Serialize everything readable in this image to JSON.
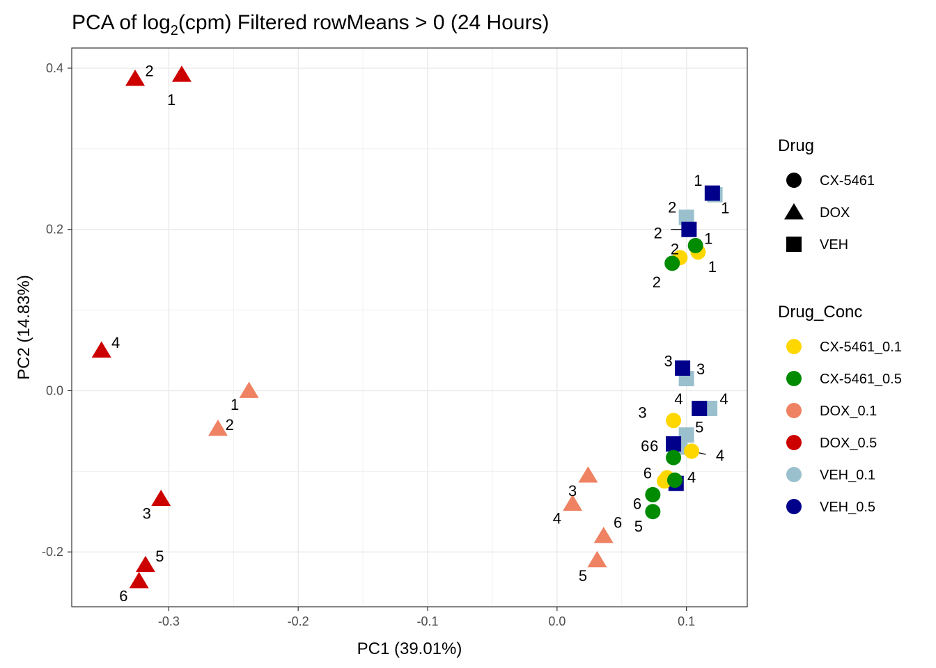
{
  "chart_data": {
    "type": "scatter",
    "title": {
      "main": "PCA of log",
      "sub": "2",
      "rest": "(cpm) Filtered rowMeans > 0 (24 Hours)"
    },
    "xlabel": "PC1 (39.01%)",
    "ylabel": "PC2 (14.83%)",
    "xlim": [
      -0.375,
      0.147
    ],
    "ylim": [
      -0.268,
      0.425
    ],
    "x_ticks": [
      -0.3,
      -0.2,
      -0.1,
      0.0,
      0.1
    ],
    "x_tick_labels": [
      "-0.3",
      "-0.2",
      "-0.1",
      "0.0",
      "0.1"
    ],
    "y_ticks": [
      -0.2,
      0.0,
      0.2,
      0.4
    ],
    "y_tick_labels": [
      "-0.2",
      "0.0",
      "0.2",
      "0.4"
    ],
    "grid": true,
    "legend_position": "right",
    "legends": [
      {
        "title": "Drug",
        "items": [
          {
            "label": "CX-5461",
            "shape": "circle"
          },
          {
            "label": "DOX",
            "shape": "triangle"
          },
          {
            "label": "VEH",
            "shape": "square"
          }
        ]
      },
      {
        "title": "Drug_Conc",
        "items": [
          {
            "label": "CX-5461_0.1",
            "color": "#FFD700"
          },
          {
            "label": "CX-5461_0.5",
            "color": "#008B00"
          },
          {
            "label": "DOX_0.1",
            "color": "#EE8262"
          },
          {
            "label": "DOX_0.5",
            "color": "#CD0000"
          },
          {
            "label": "VEH_0.1",
            "color": "#9AC0CD"
          },
          {
            "label": "VEH_0.5",
            "color": "#00008B"
          }
        ]
      }
    ],
    "series": [
      {
        "name": "VEH_0.1",
        "drug": "VEH",
        "color": "#9AC0CD",
        "points": [
          {
            "x": 0.122,
            "y": 0.243,
            "label": "1",
            "dx": 0.008,
            "dy": -0.016
          },
          {
            "x": 0.1,
            "y": 0.215,
            "label": "2",
            "dx": -0.011,
            "dy": 0.013
          },
          {
            "x": 0.1,
            "y": 0.015,
            "label": "3",
            "dx": 0.011,
            "dy": 0.012
          },
          {
            "x": 0.118,
            "y": -0.022,
            "label": "4",
            "dx": 0.011,
            "dy": 0.012
          },
          {
            "x": 0.1,
            "y": -0.055,
            "label": "5",
            "dx": 0.01,
            "dy": 0.01
          },
          {
            "x": 0.095,
            "y": -0.07,
            "label": "6",
            "dx": -0.02,
            "dy": 0.002
          }
        ]
      },
      {
        "name": "VEH_0.5",
        "drug": "VEH",
        "color": "#00008B",
        "points": [
          {
            "x": 0.12,
            "y": 0.245,
            "label": "1",
            "dx": -0.011,
            "dy": 0.016
          },
          {
            "x": 0.102,
            "y": 0.2,
            "label": "2",
            "dx": -0.024,
            "dy": -0.004
          },
          {
            "x": 0.097,
            "y": 0.028,
            "label": "3",
            "dx": -0.011,
            "dy": 0.009
          },
          {
            "x": 0.11,
            "y": -0.022,
            "label": "4",
            "dx": -0.016,
            "dy": 0.012
          },
          {
            "x": 0.092,
            "y": -0.115,
            "label": "5",
            "dx": 0.0,
            "dy": 0.0,
            "hide_label": true
          },
          {
            "x": 0.09,
            "y": -0.066,
            "label": "6",
            "dx": -0.022,
            "dy": -0.002
          }
        ]
      },
      {
        "name": "CX-5461_0.1",
        "drug": "CX-5461",
        "color": "#FFD700",
        "points": [
          {
            "x": 0.109,
            "y": 0.172,
            "label": "1",
            "dx": 0.011,
            "dy": -0.018
          },
          {
            "x": 0.095,
            "y": 0.165,
            "label": "2",
            "dx": -0.004,
            "dy": 0.011
          },
          {
            "x": 0.09,
            "y": -0.037,
            "label": "3",
            "dx": -0.024,
            "dy": 0.01
          },
          {
            "x": 0.104,
            "y": -0.075,
            "label": "4",
            "dx": 0.022,
            "dy": -0.005
          },
          {
            "x": 0.083,
            "y": -0.112,
            "label": "5",
            "dx": 0.0,
            "dy": 0.0,
            "hide_label": true
          },
          {
            "x": 0.085,
            "y": -0.108,
            "label": "6",
            "dx": -0.015,
            "dy": 0.006
          }
        ]
      },
      {
        "name": "CX-5461_0.5",
        "drug": "CX-5461",
        "color": "#008B00",
        "points": [
          {
            "x": 0.107,
            "y": 0.18,
            "label": "1",
            "dx": 0.01,
            "dy": 0.009
          },
          {
            "x": 0.089,
            "y": 0.158,
            "label": "2",
            "dx": -0.012,
            "dy": -0.023
          },
          {
            "x": 0.09,
            "y": -0.083,
            "label": "3",
            "dx": 0.0,
            "dy": 0.0,
            "hide_label": true
          },
          {
            "x": 0.091,
            "y": -0.111,
            "label": "4",
            "dx": 0.013,
            "dy": 0.004
          },
          {
            "x": 0.074,
            "y": -0.15,
            "label": "5",
            "dx": -0.011,
            "dy": -0.018
          },
          {
            "x": 0.074,
            "y": -0.129,
            "label": "6",
            "dx": -0.012,
            "dy": -0.011
          }
        ]
      },
      {
        "name": "DOX_0.1",
        "drug": "DOX",
        "color": "#EE8262",
        "points": [
          {
            "x": -0.238,
            "y": 0.0,
            "label": "1",
            "dx": -0.011,
            "dy": -0.017
          },
          {
            "x": -0.262,
            "y": -0.047,
            "label": "2",
            "dx": 0.009,
            "dy": 0.005
          },
          {
            "x": 0.024,
            "y": -0.105,
            "label": "3",
            "dx": -0.012,
            "dy": -0.019
          },
          {
            "x": 0.012,
            "y": -0.14,
            "label": "4",
            "dx": -0.012,
            "dy": -0.018
          },
          {
            "x": 0.031,
            "y": -0.21,
            "label": "5",
            "dx": -0.011,
            "dy": -0.019
          },
          {
            "x": 0.036,
            "y": -0.18,
            "label": "6",
            "dx": 0.011,
            "dy": 0.017
          }
        ]
      },
      {
        "name": "DOX_0.5",
        "drug": "DOX",
        "color": "#CD0000",
        "points": [
          {
            "x": -0.29,
            "y": 0.392,
            "label": "1",
            "dx": -0.008,
            "dy": -0.031
          },
          {
            "x": -0.326,
            "y": 0.387,
            "label": "2",
            "dx": 0.011,
            "dy": 0.01
          },
          {
            "x": -0.306,
            "y": -0.134,
            "label": "3",
            "dx": -0.011,
            "dy": -0.018
          },
          {
            "x": -0.352,
            "y": 0.05,
            "label": "4",
            "dx": 0.011,
            "dy": 0.01
          },
          {
            "x": -0.318,
            "y": -0.216,
            "label": "5",
            "dx": 0.011,
            "dy": 0.011
          },
          {
            "x": -0.323,
            "y": -0.236,
            "label": "6",
            "dx": -0.012,
            "dy": -0.018
          }
        ]
      }
    ],
    "connector_lines": [
      {
        "x1": 0.088,
        "y1": 0.2,
        "x2": 0.1,
        "y2": 0.2
      },
      {
        "x1": 0.104,
        "y1": -0.075,
        "x2": 0.115,
        "y2": -0.079
      }
    ]
  }
}
